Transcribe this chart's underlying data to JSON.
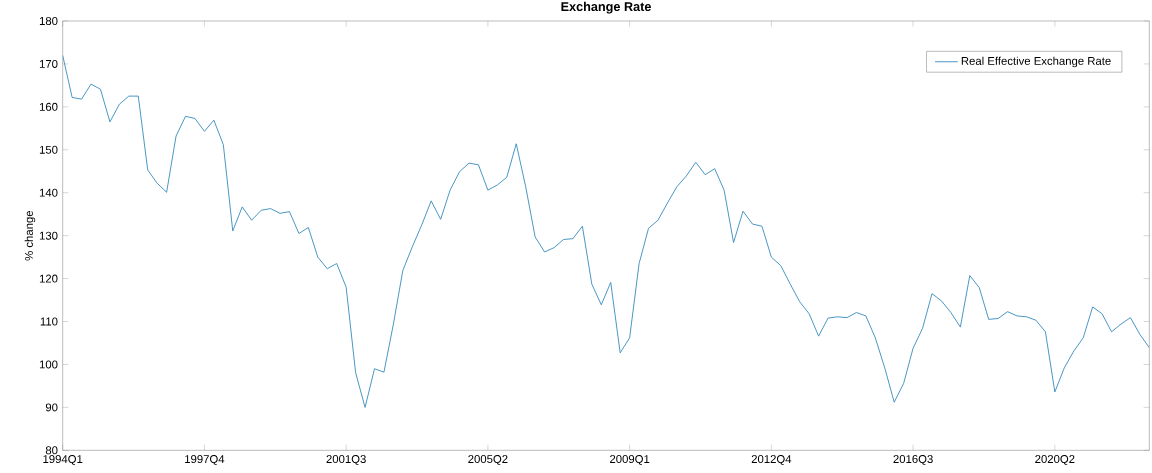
{
  "chart_data": {
    "type": "line",
    "title": "Exchange Rate",
    "ylabel": "% change",
    "categories": [
      "1994Q1",
      null,
      null,
      null,
      null,
      null,
      null,
      null,
      null,
      null,
      null,
      null,
      null,
      null,
      null,
      "1997Q4",
      null,
      null,
      null,
      null,
      null,
      null,
      null,
      null,
      null,
      null,
      null,
      null,
      null,
      null,
      "2001Q3",
      null,
      null,
      null,
      null,
      null,
      null,
      null,
      null,
      null,
      null,
      null,
      null,
      null,
      null,
      "2005Q2",
      null,
      null,
      null,
      null,
      null,
      null,
      null,
      null,
      null,
      null,
      null,
      null,
      null,
      null,
      "2009Q1",
      null,
      null,
      null,
      null,
      null,
      null,
      null,
      null,
      null,
      null,
      null,
      null,
      null,
      null,
      "2012Q4",
      null,
      null,
      null,
      null,
      null,
      null,
      null,
      null,
      null,
      null,
      null,
      null,
      null,
      null,
      "2016Q3",
      null,
      null,
      null,
      null,
      null,
      null,
      null,
      null,
      null,
      null,
      null,
      null,
      null,
      null,
      "2020Q2",
      null,
      null,
      null,
      null,
      null,
      null,
      null,
      null,
      null,
      null
    ],
    "series": [
      {
        "name": "Real Effective Exchange Rate",
        "color": "#3d8fc0",
        "values": [
          172,
          162.2,
          161.8,
          165.3,
          164.1,
          156.5,
          160.6,
          162.5,
          162.5,
          145.3,
          142.2,
          140.1,
          153.2,
          157.8,
          157.3,
          154.3,
          156.9,
          151.2,
          131.1,
          136.7,
          133.6,
          135.9,
          136.3,
          135.2,
          135.6,
          130.5,
          131.9,
          125,
          122.3,
          123.5,
          118,
          98.1,
          90,
          99,
          98.2,
          109.4,
          121.9,
          127.4,
          132.5,
          138.1,
          133.8,
          140.6,
          144.9,
          146.9,
          146.5,
          140.6,
          141.8,
          143.6,
          151.4,
          141.4,
          129.7,
          126.2,
          127.2,
          129.1,
          129.3,
          132.2,
          118.7,
          113.9,
          119.1,
          102.7,
          106.2,
          123.5,
          131.7,
          133.6,
          137.6,
          141.4,
          143.9,
          147.1,
          144.2,
          145.6,
          140.6,
          128.4,
          135.7,
          132.7,
          132.2,
          125,
          123,
          118.7,
          114.6,
          111.8,
          106.6,
          110.8,
          111.1,
          110.9,
          112.1,
          111.3,
          106.2,
          99.2,
          91.2,
          95.6,
          103.8,
          108.4,
          116.5,
          114.8,
          112.1,
          108.7,
          120.7,
          117.9,
          110.5,
          110.7,
          112.3,
          111.3,
          111.1,
          110.3,
          107.6,
          93.6,
          99.2,
          103.1,
          106.2,
          113.4,
          111.8,
          107.6,
          109.4,
          110.9,
          107,
          103.9
        ]
      }
    ],
    "ylim": [
      80,
      180
    ],
    "yticks": [
      80,
      90,
      100,
      110,
      120,
      130,
      140,
      150,
      160,
      170,
      180
    ],
    "legend": "top right",
    "line_style": "solid"
  }
}
